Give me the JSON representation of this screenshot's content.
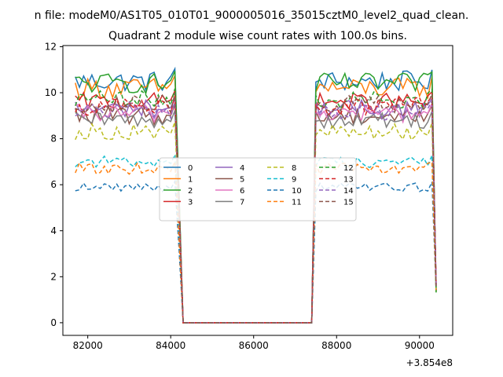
{
  "suptitle": "n file: modeM0/AS1T05_010T01_9000005016_35015cztM0_level2_quad_clean.",
  "chart_data": {
    "type": "line",
    "title": "Quadrant 2 module wise count rates with 100.0s bins.",
    "xlabel": "",
    "ylabel": "",
    "x_offset_label": "+3.854e8",
    "xlim": [
      81400,
      90800
    ],
    "ylim": [
      -0.55,
      12.05
    ],
    "x_ticks": [
      82000,
      84000,
      86000,
      88000,
      90000
    ],
    "x_tick_labels": [
      "82000",
      "84000",
      "86000",
      "88000",
      "90000"
    ],
    "y_ticks": [
      0,
      2,
      4,
      6,
      8,
      10,
      12
    ],
    "y_tick_labels": [
      "0",
      "2",
      "4",
      "6",
      "8",
      "10",
      "12"
    ],
    "grid": false,
    "legend_position": "center",
    "legend_ncol": 4,
    "segments": [
      {
        "x_start": 81700,
        "x_end": 84100,
        "step": 100
      },
      {
        "x_start": 87500,
        "x_end": 90300,
        "step": 100
      }
    ],
    "drop_points": [
      [
        84200,
        6.0
      ],
      [
        84300,
        0
      ],
      [
        87400,
        0
      ],
      [
        90400,
        1.5
      ]
    ],
    "series": [
      {
        "name": "0",
        "color": "#1f77b4",
        "dash": "solid",
        "mean": 10.5,
        "noise": 0.45
      },
      {
        "name": "1",
        "color": "#ff7f0e",
        "dash": "solid",
        "mean": 10.2,
        "noise": 0.45
      },
      {
        "name": "2",
        "color": "#2ca02c",
        "dash": "solid",
        "mean": 10.4,
        "noise": 0.45
      },
      {
        "name": "3",
        "color": "#d62728",
        "dash": "solid",
        "mean": 9.6,
        "noise": 0.4
      },
      {
        "name": "4",
        "color": "#9467bd",
        "dash": "solid",
        "mean": 9.3,
        "noise": 0.4
      },
      {
        "name": "5",
        "color": "#8c564b",
        "dash": "solid",
        "mean": 9.0,
        "noise": 0.4
      },
      {
        "name": "6",
        "color": "#e377c2",
        "dash": "solid",
        "mean": 9.1,
        "noise": 0.4
      },
      {
        "name": "7",
        "color": "#7f7f7f",
        "dash": "solid",
        "mean": 8.8,
        "noise": 0.35
      },
      {
        "name": "8",
        "color": "#bcbd22",
        "dash": "dashed",
        "mean": 8.3,
        "noise": 0.35
      },
      {
        "name": "9",
        "color": "#17becf",
        "dash": "dashed",
        "mean": 7.0,
        "noise": 0.25
      },
      {
        "name": "10",
        "color": "#1f77b4",
        "dash": "dashed",
        "mean": 5.9,
        "noise": 0.2
      },
      {
        "name": "11",
        "color": "#ff7f0e",
        "dash": "dashed",
        "mean": 6.7,
        "noise": 0.25
      },
      {
        "name": "12",
        "color": "#2ca02c",
        "dash": "dashed",
        "mean": 9.7,
        "noise": 0.4
      },
      {
        "name": "13",
        "color": "#d62728",
        "dash": "dashed",
        "mean": 9.4,
        "noise": 0.4
      },
      {
        "name": "14",
        "color": "#9467bd",
        "dash": "dashed",
        "mean": 9.2,
        "noise": 0.4
      },
      {
        "name": "15",
        "color": "#8c564b",
        "dash": "dashed",
        "mean": 9.5,
        "noise": 0.4
      }
    ]
  }
}
